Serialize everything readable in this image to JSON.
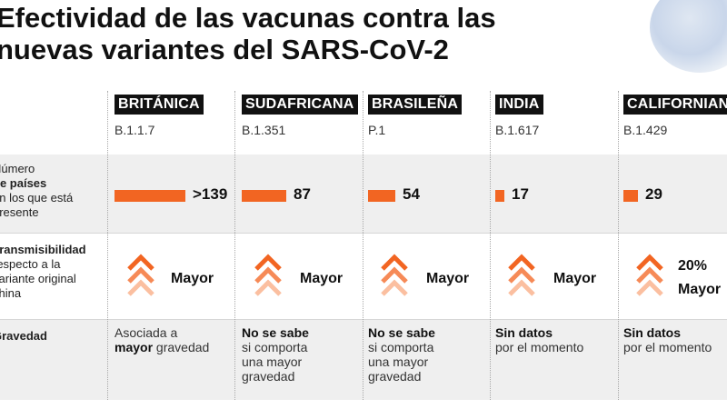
{
  "title": {
    "line1": "Efectividad de las vacunas contra las",
    "line2": "nuevas variantes del SARS-CoV-2"
  },
  "rows": {
    "countries": {
      "pre": "Número",
      "bold": "de países",
      "post": "en los que está presente"
    },
    "transmissibility": {
      "bold": "Transmisibilidad",
      "post": "respecto a la variante original china"
    },
    "severity": {
      "bold": "Gravedad"
    }
  },
  "colors": {
    "accent": "#f26522",
    "band": "#efefef",
    "label_bg": "#111111"
  },
  "variants": [
    {
      "name": "BRITÁNICA",
      "code": "B.1.1.7",
      "countries_label": ">139",
      "countries_value": 139,
      "trans_label": "Mayor",
      "trans_pct": "",
      "sev_line1": "Asociada a",
      "sev_strong": "mayor",
      "sev_rest": "gravedad",
      "sev_line3": ""
    },
    {
      "name": "SUDAFRICANA",
      "code": "B.1.351",
      "countries_label": "87",
      "countries_value": 87,
      "trans_label": "Mayor",
      "trans_pct": "",
      "sev_strong": "No se sabe",
      "sev_line2": "si comporta",
      "sev_line3": "una mayor",
      "sev_line4": "gravedad"
    },
    {
      "name": "BRASILEÑA",
      "code": "P.1",
      "countries_label": "54",
      "countries_value": 54,
      "trans_label": "Mayor",
      "trans_pct": "",
      "sev_strong": "No se sabe",
      "sev_line2": "si comporta",
      "sev_line3": "una mayor",
      "sev_line4": "gravedad"
    },
    {
      "name": "INDIA",
      "code": "B.1.617",
      "countries_label": "17",
      "countries_value": 17,
      "trans_label": "Mayor",
      "trans_pct": "",
      "sev_strong": "Sin datos",
      "sev_line2": "por el momento",
      "sev_line3": "",
      "sev_line4": ""
    },
    {
      "name": "CALIFORNIANA",
      "code": "B.1.429",
      "countries_label": "29",
      "countries_value": 29,
      "trans_label": "Mayor",
      "trans_pct": "20%",
      "sev_strong": "Sin datos",
      "sev_line2": "por el momento",
      "sev_line3": "",
      "sev_line4": ""
    }
  ]
}
